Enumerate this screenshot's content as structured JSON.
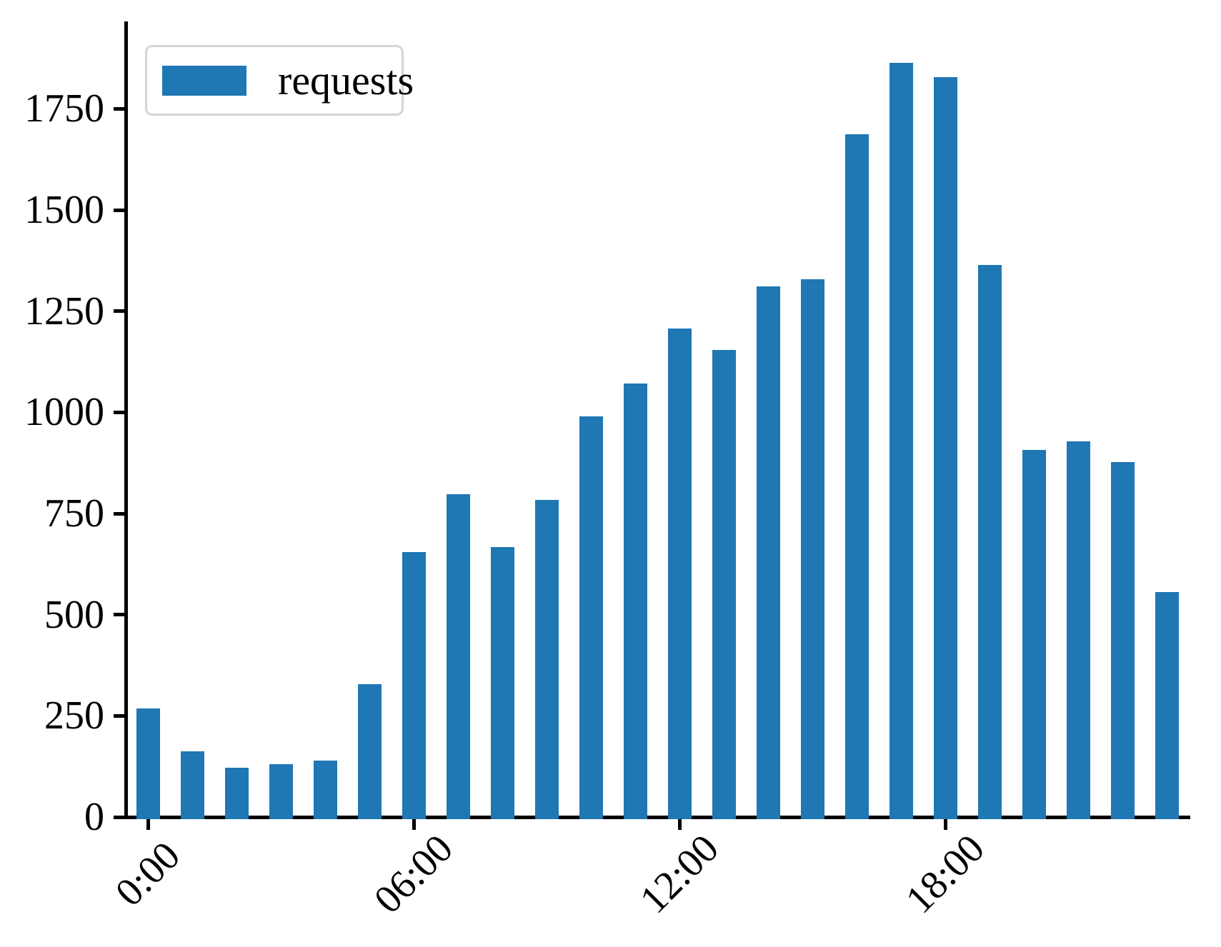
{
  "chart_data": {
    "type": "bar",
    "title": "",
    "xlabel": "",
    "ylabel": "",
    "grid": false,
    "bar_color": "#1f77b4",
    "axis_color": "#000000",
    "legend": {
      "entries": [
        "requests"
      ],
      "position": "upper left",
      "border_color": "#d5d5d5"
    },
    "x_hours": [
      0,
      1,
      2,
      3,
      4,
      5,
      6,
      7,
      8,
      9,
      10,
      11,
      12,
      13,
      14,
      15,
      16,
      17,
      18,
      19,
      20,
      21,
      22,
      23
    ],
    "series": [
      {
        "name": "requests",
        "values": [
          268,
          162,
          122,
          131,
          139,
          329,
          655,
          798,
          667,
          783,
          990,
          1071,
          1207,
          1154,
          1311,
          1329,
          1687,
          1864,
          1828,
          1364,
          907,
          928,
          877,
          556
        ]
      }
    ],
    "yticks": [
      0,
      250,
      500,
      750,
      1000,
      1250,
      1500,
      1750
    ],
    "xticks": [
      {
        "pos": 0,
        "label": "0:00"
      },
      {
        "pos": 6,
        "label": "06:00"
      },
      {
        "pos": 12,
        "label": "12:00"
      },
      {
        "pos": 18,
        "label": "18:00"
      }
    ],
    "ylim": [
      0,
      1965
    ],
    "xlim": [
      -0.5,
      23.5
    ]
  }
}
